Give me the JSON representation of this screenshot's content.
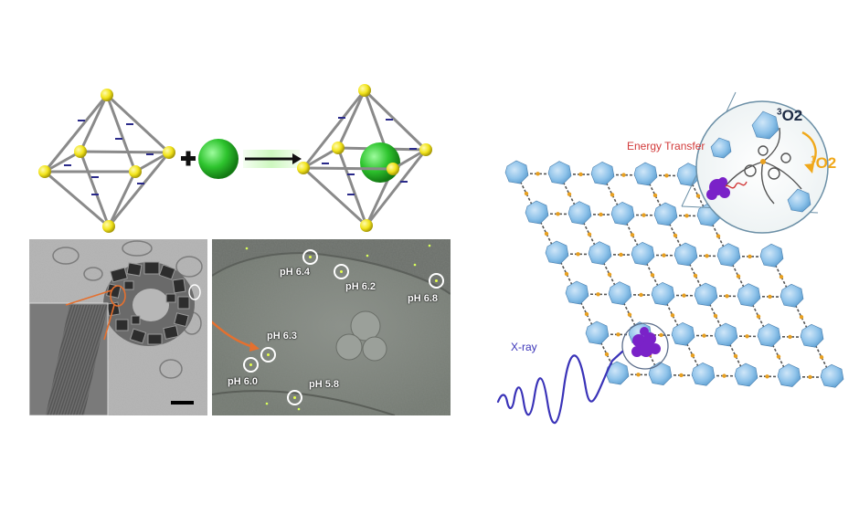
{
  "ph_labels": {
    "ph64": "pH 6.4",
    "ph62": "pH 6.2",
    "ph68": "pH 6.8",
    "ph63": "pH 6.3",
    "ph60": "pH 6.0",
    "ph58": "pH 5.8"
  },
  "mof": {
    "energy_transfer": "Energy Transfer",
    "xray": "X-ray",
    "triplet_superscript": "3",
    "singlet_superscript": "1",
    "o2": "O2"
  },
  "colors": {
    "sphere_green": "#2ec42e",
    "vertex_yellow": "#f2e41a",
    "cluster_blue": "#8fc3ea",
    "guest_purple": "#7a22c8",
    "xray_purple": "#3a33b8",
    "arrow_orange": "#e4702f",
    "singlet_orange": "#f0a81a",
    "energy_red": "#d23a3a"
  }
}
